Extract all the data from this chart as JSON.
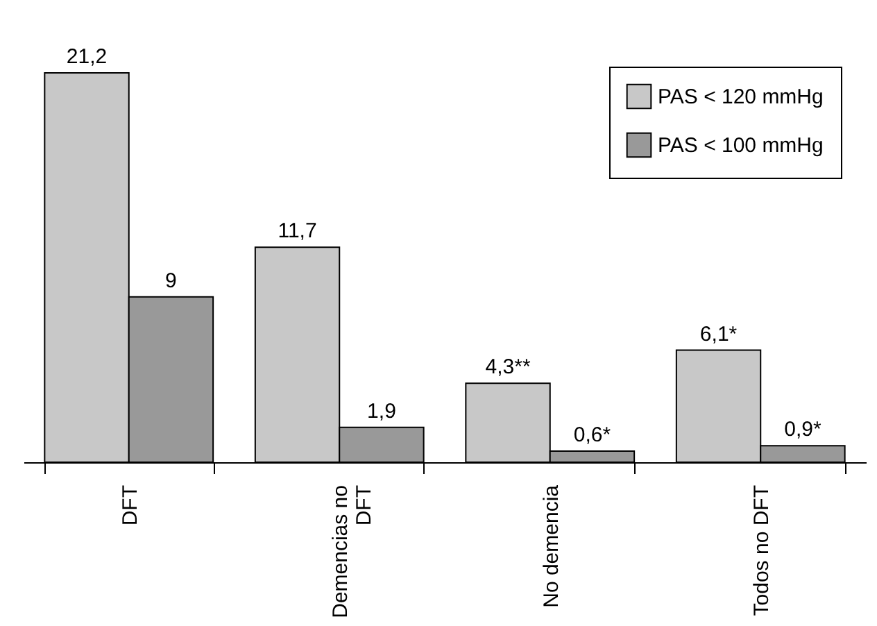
{
  "chart_data": {
    "type": "bar",
    "categories": [
      "DFT",
      "Demencias no DFT",
      "No demencia",
      "Todos no DFT"
    ],
    "series": [
      {
        "name": "PAS < 120 mmHg",
        "color": "#c8c8c8",
        "values": [
          21.2,
          11.7,
          4.3,
          6.1
        ],
        "value_labels": [
          "21,2",
          "11,7",
          "4,3**",
          "6,1*"
        ]
      },
      {
        "name": "PAS < 100 mmHg",
        "color": "#999999",
        "values": [
          9,
          1.9,
          0.6,
          0.9
        ],
        "value_labels": [
          "9",
          "1,9",
          "0,6*",
          "0,9*"
        ]
      }
    ],
    "legend": "top right",
    "grid": false,
    "tick_labels": "x"
  }
}
